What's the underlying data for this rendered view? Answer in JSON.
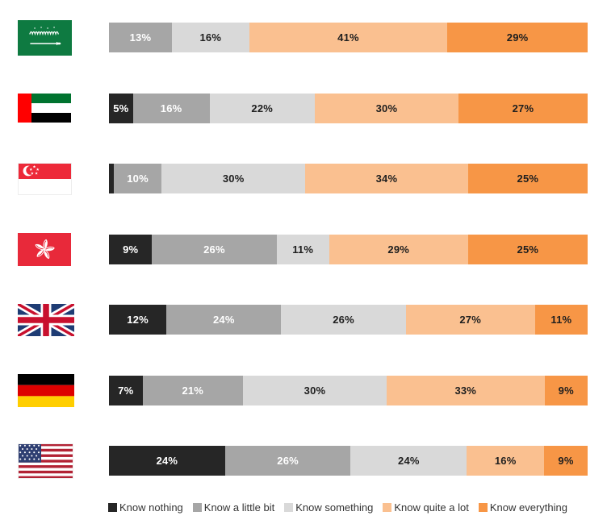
{
  "chart_data": {
    "type": "bar",
    "variant": "horizontal-stacked-100",
    "unit": "%",
    "categories": [
      "Saudi Arabia",
      "United Arab Emirates",
      "Singapore",
      "Hong Kong",
      "United Kingdom",
      "Germany",
      "United States"
    ],
    "series": [
      {
        "name": "Know nothing",
        "color": "#262626",
        "text_color": "#ffffff",
        "values": [
          0,
          5,
          1,
          9,
          12,
          7,
          24
        ]
      },
      {
        "name": "Know a little bit",
        "color": "#a6a6a6",
        "text_color": "#ffffff",
        "values": [
          13,
          16,
          10,
          26,
          24,
          21,
          26
        ]
      },
      {
        "name": "Know something",
        "color": "#d9d9d9",
        "text_color": "#1f1f1f",
        "values": [
          16,
          22,
          30,
          11,
          26,
          30,
          24
        ]
      },
      {
        "name": "Know quite a lot",
        "color": "#fac090",
        "text_color": "#1f1f1f",
        "values": [
          41,
          30,
          34,
          29,
          27,
          33,
          16
        ]
      },
      {
        "name": "Know everything",
        "color": "#f79646",
        "text_color": "#1f1f1f",
        "values": [
          29,
          27,
          25,
          25,
          11,
          9,
          9
        ]
      }
    ],
    "label_format": "{value}%",
    "min_label_value": 4,
    "axis": "none",
    "grid": false,
    "legend_position": "bottom"
  },
  "legend": {
    "items": [
      {
        "label": "Know nothing",
        "color": "#262626"
      },
      {
        "label": "Know a little bit",
        "color": "#a6a6a6"
      },
      {
        "label": "Know something",
        "color": "#d9d9d9"
      },
      {
        "label": "Know quite a lot",
        "color": "#fac090"
      },
      {
        "label": "Know everything",
        "color": "#f79646"
      }
    ]
  }
}
